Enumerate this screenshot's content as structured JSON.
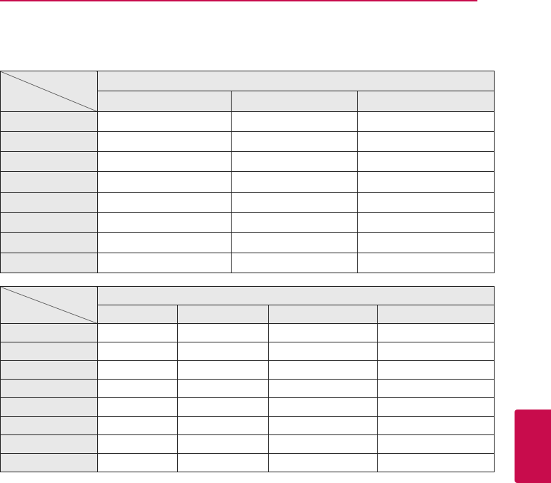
{
  "colors": {
    "accent": "#c80c4c",
    "header_fill": "#e8e8e8",
    "border": "#222222"
  },
  "table1": {
    "group_header": "",
    "column_headers": [
      "",
      "",
      ""
    ],
    "rows": [
      [
        "",
        "",
        "",
        ""
      ],
      [
        "",
        "",
        "",
        ""
      ],
      [
        "",
        "",
        "",
        ""
      ],
      [
        "",
        "",
        "",
        ""
      ],
      [
        "",
        "",
        "",
        ""
      ],
      [
        "",
        "",
        "",
        ""
      ],
      [
        "",
        "",
        "",
        ""
      ],
      [
        "",
        "",
        "",
        ""
      ]
    ]
  },
  "table2": {
    "group_header": "",
    "column_headers": [
      "",
      "",
      "",
      ""
    ],
    "rows": [
      [
        "",
        "",
        "",
        "",
        ""
      ],
      [
        "",
        "",
        "",
        "",
        ""
      ],
      [
        "",
        "",
        "",
        "",
        ""
      ],
      [
        "",
        "",
        "",
        "",
        ""
      ],
      [
        "",
        "",
        "",
        "",
        ""
      ],
      [
        "",
        "",
        "",
        "",
        ""
      ],
      [
        "",
        "",
        "",
        "",
        ""
      ],
      [
        "",
        "",
        "",
        "",
        ""
      ]
    ]
  }
}
